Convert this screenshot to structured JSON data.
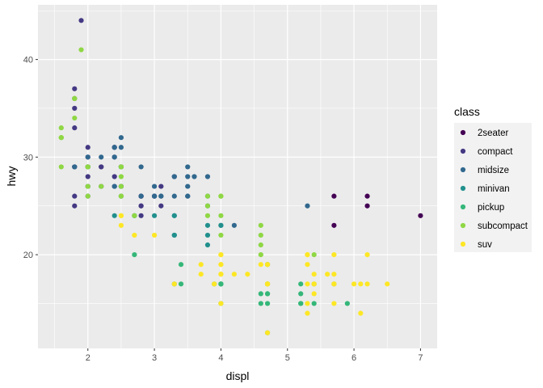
{
  "chart_data": {
    "type": "scatter",
    "xlabel": "displ",
    "ylabel": "hwy",
    "xlim": [
      1.25,
      7.25
    ],
    "ylim": [
      10.4,
      45.6
    ],
    "xticks": [
      2,
      3,
      4,
      5,
      6,
      7
    ],
    "yticks": [
      20,
      30,
      40
    ],
    "grid": true,
    "legend_title": "class",
    "legend_placement": "right",
    "series": [
      {
        "name": "2seater",
        "color": "#440154",
        "points": [
          [
            5.7,
            26
          ],
          [
            5.7,
            23
          ],
          [
            6.2,
            26
          ],
          [
            6.2,
            25
          ],
          [
            7.0,
            24
          ]
        ]
      },
      {
        "name": "compact",
        "color": "#443983",
        "points": [
          [
            1.8,
            29
          ],
          [
            1.8,
            29
          ],
          [
            2.0,
            31
          ],
          [
            2.0,
            30
          ],
          [
            2.8,
            26
          ],
          [
            2.8,
            26
          ],
          [
            3.1,
            27
          ],
          [
            1.8,
            26
          ],
          [
            1.8,
            25
          ],
          [
            2.0,
            28
          ],
          [
            2.0,
            27
          ],
          [
            2.8,
            25
          ],
          [
            2.8,
            25
          ],
          [
            3.1,
            25
          ],
          [
            1.8,
            37
          ],
          [
            1.8,
            35
          ],
          [
            1.8,
            36
          ],
          [
            1.8,
            33
          ],
          [
            2.0,
            29
          ],
          [
            2.0,
            26
          ],
          [
            2.2,
            29
          ],
          [
            2.2,
            27
          ],
          [
            2.4,
            31
          ],
          [
            2.4,
            31
          ],
          [
            2.4,
            30
          ],
          [
            2.5,
            29
          ],
          [
            2.5,
            27
          ],
          [
            2.4,
            28
          ],
          [
            3.0,
            26
          ],
          [
            3.0,
            26
          ],
          [
            2.0,
            29
          ],
          [
            2.0,
            29
          ],
          [
            2.8,
            26
          ],
          [
            2.8,
            24
          ],
          [
            2.5,
            29
          ],
          [
            2.8,
            26
          ],
          [
            3.3,
            28
          ],
          [
            2.2,
            29
          ],
          [
            2.5,
            26
          ],
          [
            1.9,
            44
          ],
          [
            2.0,
            29
          ]
        ]
      },
      {
        "name": "midsize",
        "color": "#31688e",
        "points": [
          [
            2.4,
            30
          ],
          [
            3.1,
            26
          ],
          [
            3.5,
            29
          ],
          [
            3.6,
            28
          ],
          [
            2.4,
            27
          ],
          [
            3.0,
            26
          ],
          [
            3.3,
            26
          ],
          [
            3.5,
            26
          ],
          [
            3.5,
            28
          ],
          [
            3.3,
            28
          ],
          [
            2.5,
            32
          ],
          [
            2.5,
            31
          ],
          [
            3.5,
            26
          ],
          [
            3.8,
            28
          ],
          [
            4.2,
            23
          ],
          [
            5.3,
            25
          ],
          [
            1.8,
            29
          ],
          [
            2.0,
            30
          ],
          [
            2.8,
            26
          ],
          [
            2.4,
            27
          ],
          [
            2.7,
            24
          ],
          [
            3.1,
            26
          ],
          [
            3.5,
            27
          ],
          [
            4.0,
            23
          ],
          [
            3.8,
            26
          ],
          [
            3.8,
            25
          ],
          [
            2.5,
            29
          ],
          [
            3.0,
            26
          ],
          [
            2.0,
            29
          ],
          [
            2.8,
            29
          ],
          [
            2.2,
            30
          ],
          [
            2.4,
            31
          ],
          [
            3.0,
            27
          ],
          [
            2.5,
            27
          ]
        ]
      },
      {
        "name": "minivan",
        "color": "#21908d",
        "points": [
          [
            2.4,
            24
          ],
          [
            3.0,
            24
          ],
          [
            3.3,
            22
          ],
          [
            3.3,
            22
          ],
          [
            3.3,
            24
          ],
          [
            3.3,
            24
          ],
          [
            3.3,
            17
          ],
          [
            3.8,
            22
          ],
          [
            3.8,
            21
          ],
          [
            3.8,
            23
          ],
          [
            4.0,
            23
          ]
        ]
      },
      {
        "name": "pickup",
        "color": "#35b779",
        "points": [
          [
            2.7,
            20
          ],
          [
            2.7,
            24
          ],
          [
            3.4,
            19
          ],
          [
            3.4,
            17
          ],
          [
            3.9,
            17
          ],
          [
            4.7,
            17
          ],
          [
            4.7,
            19
          ],
          [
            4.7,
            19
          ],
          [
            5.2,
            17
          ],
          [
            5.2,
            15
          ],
          [
            5.7,
            17
          ],
          [
            5.9,
            15
          ],
          [
            4.7,
            17
          ],
          [
            4.7,
            16
          ],
          [
            4.7,
            12
          ],
          [
            5.2,
            15
          ],
          [
            5.2,
            16
          ],
          [
            4.0,
            17
          ],
          [
            4.0,
            17
          ],
          [
            4.6,
            15
          ],
          [
            4.6,
            16
          ],
          [
            5.4,
            15
          ],
          [
            5.4,
            17
          ],
          [
            4.0,
            15
          ],
          [
            4.7,
            17
          ],
          [
            4.7,
            15
          ],
          [
            4.0,
            17
          ],
          [
            4.0,
            17
          ],
          [
            4.7,
            16
          ]
        ]
      },
      {
        "name": "subcompact",
        "color": "#8fd744",
        "points": [
          [
            1.6,
            33
          ],
          [
            1.6,
            32
          ],
          [
            1.6,
            32
          ],
          [
            1.6,
            29
          ],
          [
            1.6,
            32
          ],
          [
            1.8,
            34
          ],
          [
            1.8,
            36
          ],
          [
            1.8,
            36
          ],
          [
            2.0,
            29
          ],
          [
            2.0,
            26
          ],
          [
            2.2,
            27
          ],
          [
            2.5,
            26
          ],
          [
            2.5,
            26
          ],
          [
            2.5,
            28
          ],
          [
            2.5,
            27
          ],
          [
            2.7,
            24
          ],
          [
            3.8,
            26
          ],
          [
            4.0,
            26
          ],
          [
            4.0,
            26
          ],
          [
            4.6,
            22
          ],
          [
            4.6,
            23
          ],
          [
            4.6,
            21
          ],
          [
            4.6,
            20
          ],
          [
            5.4,
            20
          ],
          [
            3.8,
            25
          ],
          [
            3.8,
            24
          ],
          [
            4.0,
            24
          ],
          [
            4.0,
            22
          ],
          [
            2.0,
            29
          ],
          [
            2.0,
            29
          ],
          [
            2.5,
            29
          ],
          [
            2.5,
            29
          ],
          [
            1.9,
            41
          ],
          [
            2.0,
            27
          ]
        ]
      },
      {
        "name": "suv",
        "color": "#fde725",
        "points": [
          [
            5.7,
            20
          ],
          [
            5.7,
            15
          ],
          [
            6.2,
            20
          ],
          [
            6.2,
            17
          ],
          [
            5.3,
            20
          ],
          [
            5.3,
            15
          ],
          [
            5.3,
            20
          ],
          [
            6.5,
            17
          ],
          [
            5.7,
            18
          ],
          [
            5.3,
            19
          ],
          [
            5.3,
            14
          ],
          [
            5.7,
            17
          ],
          [
            6.1,
            14
          ],
          [
            4.0,
            19
          ],
          [
            4.0,
            20
          ],
          [
            4.7,
            17
          ],
          [
            4.7,
            19
          ],
          [
            3.7,
            18
          ],
          [
            4.7,
            17
          ],
          [
            4.7,
            19
          ],
          [
            5.7,
            17
          ],
          [
            6.1,
            17
          ],
          [
            4.6,
            19
          ],
          [
            5.4,
            18
          ],
          [
            4.0,
            15
          ],
          [
            4.0,
            19
          ],
          [
            5.6,
            18
          ],
          [
            4.2,
            18
          ],
          [
            4.4,
            18
          ],
          [
            5.3,
            17
          ],
          [
            4.7,
            17
          ],
          [
            2.5,
            24
          ],
          [
            2.5,
            24
          ],
          [
            2.5,
            23
          ],
          [
            3.3,
            17
          ],
          [
            4.0,
            18
          ],
          [
            4.7,
            17
          ],
          [
            4.0,
            18
          ],
          [
            4.7,
            12
          ],
          [
            2.7,
            22
          ],
          [
            3.0,
            22
          ],
          [
            3.7,
            19
          ],
          [
            4.0,
            20
          ],
          [
            5.4,
            17
          ],
          [
            5.4,
            16
          ],
          [
            3.9,
            17
          ],
          [
            6.0,
            17
          ],
          [
            5.4,
            17
          ]
        ]
      }
    ]
  }
}
